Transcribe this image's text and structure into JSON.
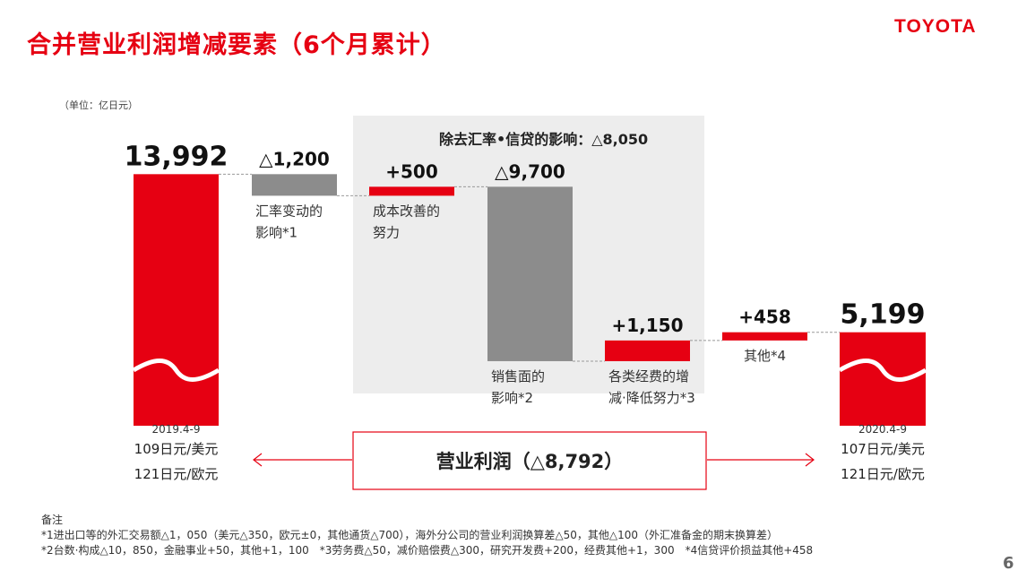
{
  "title": "合并营业利润增减要素（6个月累计）",
  "logo": "TOYOTA",
  "unit": "（单位：亿日元）",
  "exclusion_note": "除去汇率•信贷的影响：△8,050",
  "colors": {
    "red": "#e60012",
    "gray": "#8c8c8c",
    "band": "#ededed"
  },
  "chart_data": {
    "type": "waterfall",
    "unit": "亿日元",
    "steps": [
      {
        "label_lines": [
          "2019.4-9"
        ],
        "display": "13,992",
        "value": 13992,
        "kind": "total",
        "footer": [
          "109日元/美元",
          "121日元/欧元"
        ]
      },
      {
        "label_lines": [
          "汇率变动的",
          "影响*1"
        ],
        "display": "△1,200",
        "value": -1200,
        "kind": "delta"
      },
      {
        "label_lines": [
          "成本改善的",
          "努力"
        ],
        "display": "+500",
        "value": 500,
        "kind": "delta"
      },
      {
        "label_lines": [
          "销售面的",
          "影响*2"
        ],
        "display": "△9,700",
        "value": -9700,
        "kind": "delta"
      },
      {
        "label_lines": [
          "各类经费的增",
          "减·降低努力*3"
        ],
        "display": "+1,150",
        "value": 1150,
        "kind": "delta"
      },
      {
        "label_lines": [
          "其他*4"
        ],
        "display": "+458",
        "value": 458,
        "kind": "delta"
      },
      {
        "label_lines": [
          "2020.4-9"
        ],
        "display": "5,199",
        "value": 5199,
        "kind": "total",
        "footer": [
          "107日元/美元",
          "121日元/欧元"
        ]
      }
    ],
    "summary": "营业利润（△8,792）",
    "summary_value": -8792
  },
  "notes": {
    "heading": "备注",
    "line1": "*1进出口等的外汇交易额△1，050（美元△350，欧元±0，其他通货△700），海外分公司的营业利润换算差△50，其他△100（外汇准备金的期末换算差）",
    "line2": "*2台数·构成△10，850，金融事业+50，其他+1，100　*3劳务费△50，减价赔偿费△300，研究开发费+200，经费其他+1，300　*4信贷评价损益其他+458"
  },
  "page_number": "6"
}
